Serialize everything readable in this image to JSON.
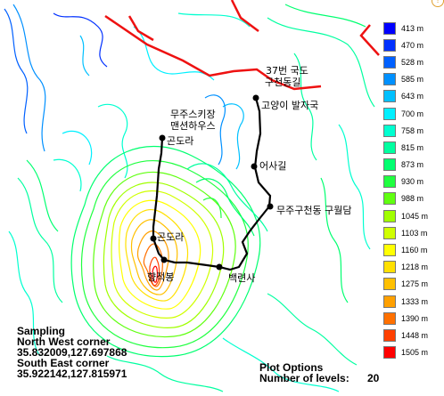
{
  "map": {
    "labels": {
      "road": "37번 국도",
      "road_sub": "구천동길",
      "goyangi": "고양이 발자국",
      "resort": "무주스키장",
      "resort_sub": "맨션하우스",
      "gondola_top": "곤도라",
      "eosagil": "어사길",
      "guwoldam": "무주구천동 구월담",
      "gondola_mid": "곤도라",
      "hyangjeokbong": "향적봉",
      "baengnyeonsa": "백련사"
    },
    "sampling": {
      "title": "Sampling",
      "nw_label": "North West corner",
      "nw_value": "35.832009,127.697868",
      "se_label": "South East corner",
      "se_value": "35.922142,127.815971"
    },
    "plot_options": {
      "title": "Plot Options",
      "levels_label": "Number of levels:",
      "levels_value": "20"
    }
  },
  "legend": [
    {
      "label": "413 m",
      "color": "#0000ff"
    },
    {
      "label": "470 m",
      "color": "#0030ff"
    },
    {
      "label": "528 m",
      "color": "#0060ff"
    },
    {
      "label": "585 m",
      "color": "#0090ff"
    },
    {
      "label": "643 m",
      "color": "#00c0ff"
    },
    {
      "label": "700 m",
      "color": "#00f0ff"
    },
    {
      "label": "758 m",
      "color": "#00ffd0"
    },
    {
      "label": "815 m",
      "color": "#00ffa0"
    },
    {
      "label": "873 m",
      "color": "#00ff70"
    },
    {
      "label": "930 m",
      "color": "#20ff40"
    },
    {
      "label": "988 m",
      "color": "#60ff10"
    },
    {
      "label": "1045 m",
      "color": "#a0ff00"
    },
    {
      "label": "1103 m",
      "color": "#d0ff00"
    },
    {
      "label": "1160 m",
      "color": "#ffff00"
    },
    {
      "label": "1218 m",
      "color": "#ffe000"
    },
    {
      "label": "1275 m",
      "color": "#ffc000"
    },
    {
      "label": "1333 m",
      "color": "#ffa000"
    },
    {
      "label": "1390 m",
      "color": "#ff7000"
    },
    {
      "label": "1448 m",
      "color": "#ff4000"
    },
    {
      "label": "1505 m",
      "color": "#ff0000"
    }
  ]
}
